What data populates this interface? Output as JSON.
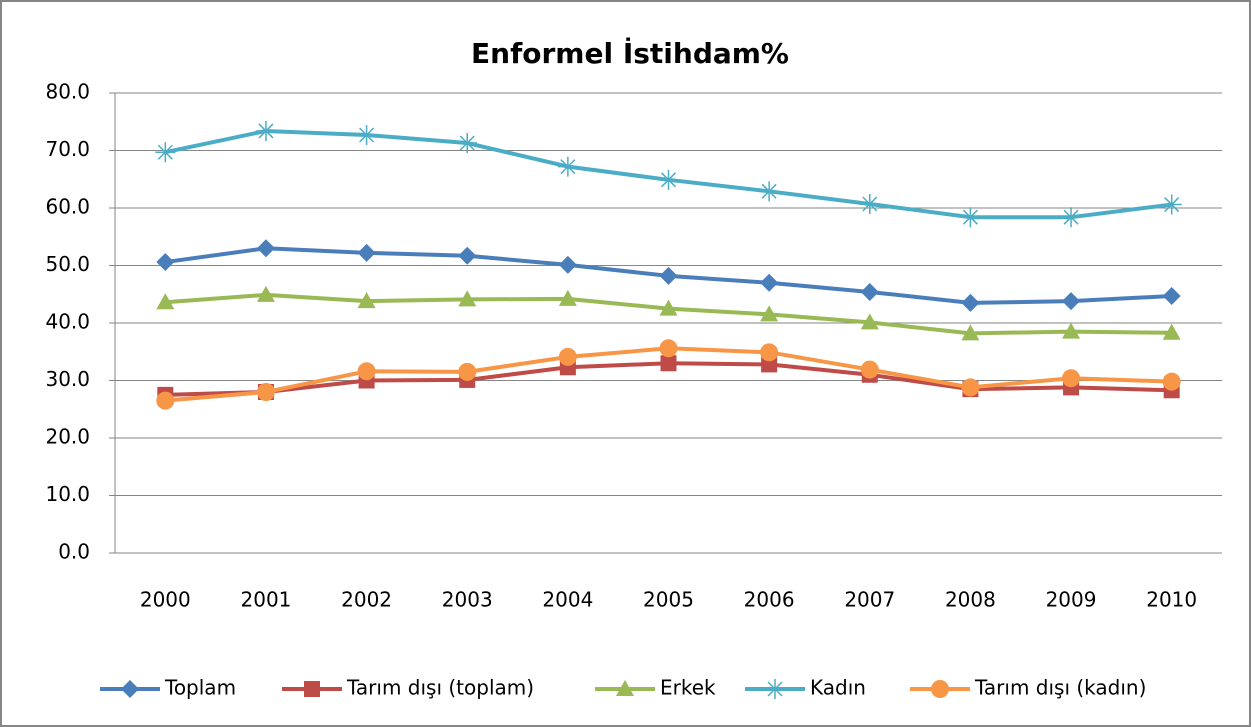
{
  "chart_data": {
    "type": "line",
    "title": "Enformel İstihdam%",
    "categories": [
      "2000",
      "2001",
      "2002",
      "2003",
      "2004",
      "2005",
      "2006",
      "2007",
      "2008",
      "2009",
      "2010"
    ],
    "series": [
      {
        "name": "Toplam",
        "color": "#4a7ebb",
        "marker": "diamond",
        "values": [
          50.6,
          53.0,
          52.2,
          51.7,
          50.1,
          48.2,
          47.0,
          45.4,
          43.5,
          43.8,
          44.7
        ]
      },
      {
        "name": "Tarım dışı (toplam)",
        "color": "#be4b48",
        "marker": "square",
        "values": [
          27.5,
          28.0,
          30.0,
          30.1,
          32.3,
          33.0,
          32.8,
          31.0,
          28.5,
          28.8,
          28.3
        ]
      },
      {
        "name": "Erkek",
        "color": "#98b954",
        "marker": "triangle",
        "values": [
          43.6,
          44.9,
          43.8,
          44.1,
          44.2,
          42.5,
          41.5,
          40.1,
          38.2,
          38.5,
          38.3
        ]
      },
      {
        "name": "Kadın",
        "color": "#4bacc6",
        "marker": "star",
        "values": [
          69.7,
          73.4,
          72.7,
          71.3,
          67.2,
          64.9,
          62.9,
          60.7,
          58.4,
          58.4,
          60.6
        ]
      },
      {
        "name": "Tarım dışı (kadın)",
        "color": "#f79646",
        "marker": "circle",
        "values": [
          26.5,
          28.0,
          31.6,
          31.5,
          34.1,
          35.6,
          34.9,
          31.9,
          28.8,
          30.4,
          29.8
        ]
      }
    ],
    "ylim": [
      0,
      80
    ],
    "yticks": [
      {
        "value": 0,
        "label": "0.0"
      },
      {
        "value": 10,
        "label": "10.0"
      },
      {
        "value": 20,
        "label": "20.0"
      },
      {
        "value": 30,
        "label": "30.0"
      },
      {
        "value": 40,
        "label": "40.0"
      },
      {
        "value": 50,
        "label": "50.0"
      },
      {
        "value": 60,
        "label": "60.0"
      },
      {
        "value": 70,
        "label": "70.0"
      },
      {
        "value": 80,
        "label": "80.0"
      }
    ],
    "grid": true,
    "legend": "bottom"
  }
}
